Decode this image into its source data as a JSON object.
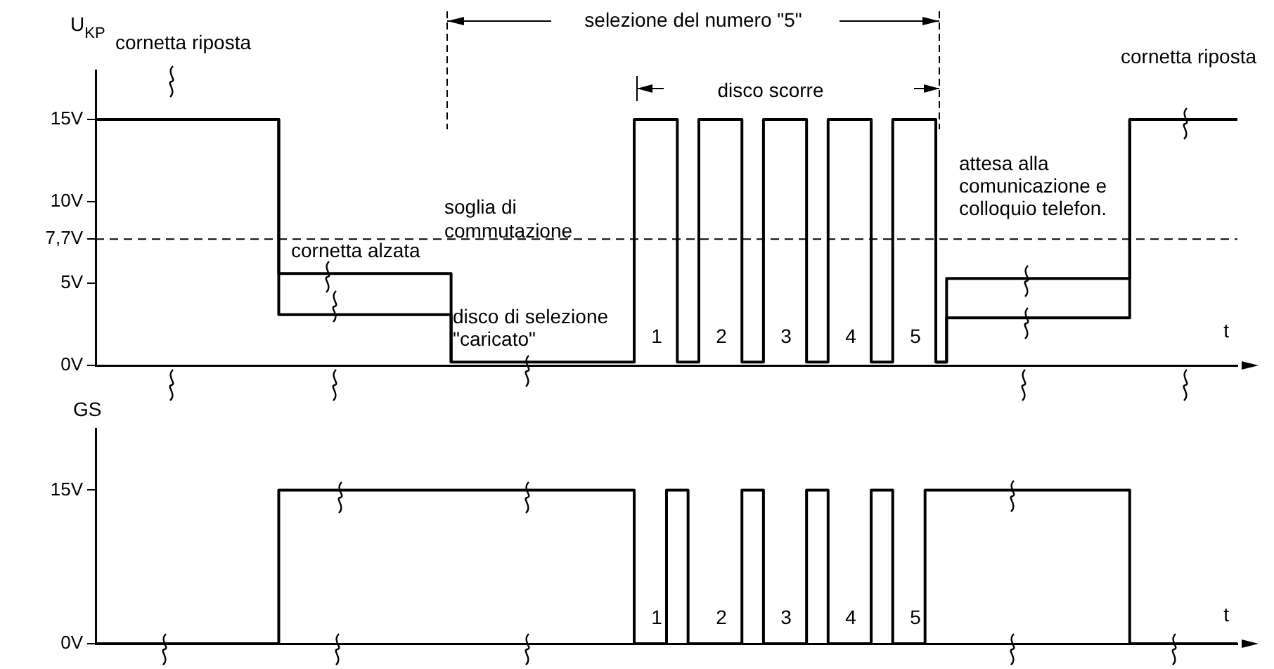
{
  "chart_data": [
    {
      "type": "step",
      "ylabel": "U$_{KP}$",
      "xlabel": "t",
      "categories": [
        null,
        null,
        null,
        null,
        null,
        null,
        null,
        null,
        null,
        null,
        null,
        null,
        null,
        null,
        null,
        null,
        null,
        null,
        null,
        null,
        null,
        null,
        null,
        null,
        null,
        null,
        null,
        null,
        null,
        null,
        null,
        null,
        null,
        null,
        null,
        null,
        null,
        null,
        null,
        null,
        null,
        null,
        null,
        null,
        null,
        null,
        null,
        null,
        null,
        null,
        null,
        null,
        null,
        null,
        null,
        null,
        null,
        null,
        null,
        null,
        null,
        null,
        null,
        null,
        null,
        null,
        null,
        null,
        null,
        null,
        null,
        null,
        null,
        null,
        null,
        null,
        null,
        null,
        null,
        null,
        null,
        null,
        null,
        null,
        null,
        null,
        null,
        null,
        null,
        null,
        null,
        null,
        null,
        null,
        null,
        null,
        null,
        null,
        null,
        null,
        null,
        null,
        null,
        null,
        null,
        null,
        null
      ],
      "series": [
        {
          "color": "#000000",
          "values": [
            15,
            15,
            15,
            15,
            15,
            15,
            15,
            15,
            15,
            15,
            15,
            15,
            15,
            15,
            15,
            15,
            15,
            5.6,
            5.6,
            5.6,
            5.6,
            5.6,
            5.6,
            5.6,
            5.6,
            5.6,
            5.6,
            5.6,
            5.6,
            5.6,
            5.6,
            5.6,
            5.6,
            0.2,
            0.2,
            0.2,
            0.2,
            0.2,
            0.2,
            0.2,
            0.2,
            0.2,
            0.2,
            0.2,
            0.2,
            0.2,
            0.2,
            0.2,
            0.2,
            0.2,
            15,
            15,
            15,
            15,
            0.2,
            0.2,
            15,
            15,
            15,
            15,
            0.2,
            0.2,
            15,
            15,
            15,
            15,
            0.2,
            0.2,
            15,
            15,
            15,
            15,
            0.2,
            0.2,
            15,
            15,
            15,
            15,
            0.2,
            5.3,
            5.3,
            5.3,
            5.3,
            5.3,
            5.3,
            5.3,
            5.3,
            5.3,
            5.3,
            5.3,
            5.3,
            5.3,
            5.3,
            5.3,
            5.3,
            5.3,
            15,
            15,
            15,
            15,
            15,
            15,
            15,
            15,
            15,
            15,
            15
          ]
        },
        {
          "color": "#000000",
          "values": [
            null,
            null,
            null,
            null,
            null,
            null,
            null,
            null,
            null,
            null,
            null,
            null,
            null,
            null,
            null,
            null,
            15,
            3.1,
            3.1,
            3.1,
            3.1,
            3.1,
            3.1,
            3.1,
            3.1,
            3.1,
            3.1,
            3.1,
            3.1,
            3.1,
            3.1,
            3.1,
            3.1,
            0.2,
            null,
            null,
            null,
            null,
            null,
            null,
            null,
            null,
            null,
            null,
            null,
            null,
            null,
            null,
            null,
            null,
            null,
            null,
            null,
            null,
            null,
            null,
            null,
            null,
            null,
            null,
            null,
            null,
            null,
            null,
            null,
            null,
            null,
            null,
            null,
            null,
            null,
            null,
            null,
            null,
            null,
            null,
            null,
            null,
            0.2,
            2.9,
            2.9,
            2.9,
            2.9,
            2.9,
            2.9,
            2.9,
            2.9,
            2.9,
            2.9,
            2.9,
            2.9,
            2.9,
            2.9,
            2.9,
            2.9,
            2.9,
            15,
            null,
            null,
            null,
            null,
            null,
            null,
            null,
            null,
            null,
            null
          ]
        }
      ],
      "ylim": [
        0,
        18
      ],
      "yticks": [
        {
          "value": 0,
          "label": "0V"
        },
        {
          "value": 5,
          "label": "5V"
        },
        {
          "value": 7.7,
          "label": "7,7V"
        },
        {
          "value": 10,
          "label": "10V"
        },
        {
          "value": 15,
          "label": "15V"
        }
      ],
      "ref_lines": [
        {
          "axis": "y",
          "value": 7.7,
          "label": "soglia di commutazione",
          "line_style": "dashed",
          "color": "#000000"
        }
      ],
      "annotations": [
        "cornetta riposta",
        "cornetta alzata",
        "disco di selezione \"caricato\"",
        "selezione del numero \"5\"",
        "disco scorre",
        "attesa alla comunicazione e colloquio telefon.",
        "cornetta riposta",
        "1",
        "2",
        "3",
        "4",
        "5"
      ],
      "grid": false,
      "legend": false,
      "tick_labels": "y"
    },
    {
      "type": "step",
      "ylabel": "GS",
      "xlabel": "t",
      "categories": [
        null,
        null,
        null,
        null,
        null,
        null,
        null,
        null,
        null,
        null,
        null,
        null,
        null,
        null,
        null,
        null,
        null,
        null,
        null,
        null,
        null,
        null,
        null,
        null,
        null,
        null,
        null,
        null,
        null,
        null,
        null,
        null,
        null,
        null,
        null,
        null,
        null,
        null,
        null,
        null,
        null,
        null,
        null,
        null,
        null,
        null,
        null,
        null,
        null,
        null,
        null,
        null,
        null,
        null,
        null,
        null,
        null,
        null,
        null,
        null,
        null,
        null,
        null,
        null,
        null,
        null,
        null,
        null,
        null,
        null,
        null,
        null,
        null,
        null,
        null,
        null,
        null,
        null,
        null,
        null,
        null,
        null,
        null,
        null,
        null,
        null,
        null,
        null,
        null,
        null,
        null,
        null,
        null,
        null,
        null,
        null,
        null,
        null,
        null,
        null,
        null,
        null,
        null,
        null,
        null,
        null,
        null
      ],
      "series": [
        {
          "color": "#000000",
          "values": [
            0,
            0,
            0,
            0,
            0,
            0,
            0,
            0,
            0,
            0,
            0,
            0,
            0,
            0,
            0,
            0,
            0,
            15,
            15,
            15,
            15,
            15,
            15,
            15,
            15,
            15,
            15,
            15,
            15,
            15,
            15,
            15,
            15,
            15,
            15,
            15,
            15,
            15,
            15,
            15,
            15,
            15,
            15,
            15,
            15,
            15,
            15,
            15,
            15,
            15,
            0,
            0,
            0,
            15,
            15,
            0,
            0,
            0,
            0,
            0,
            15,
            15,
            0,
            0,
            0,
            0,
            15,
            15,
            0,
            0,
            0,
            0,
            15,
            15,
            0,
            0,
            0,
            15,
            15,
            15,
            15,
            15,
            15,
            15,
            15,
            15,
            15,
            15,
            15,
            15,
            15,
            15,
            15,
            15,
            15,
            15,
            0,
            0,
            0,
            0,
            0,
            0,
            0,
            0,
            0,
            0,
            0
          ]
        }
      ],
      "ylim": [
        0,
        21
      ],
      "yticks": [
        {
          "value": 0,
          "label": "0V"
        },
        {
          "value": 15,
          "label": "15V"
        }
      ],
      "annotations": [
        "1",
        "2",
        "3",
        "4",
        "5"
      ],
      "grid": false,
      "legend": false,
      "tick_labels": "y"
    }
  ]
}
